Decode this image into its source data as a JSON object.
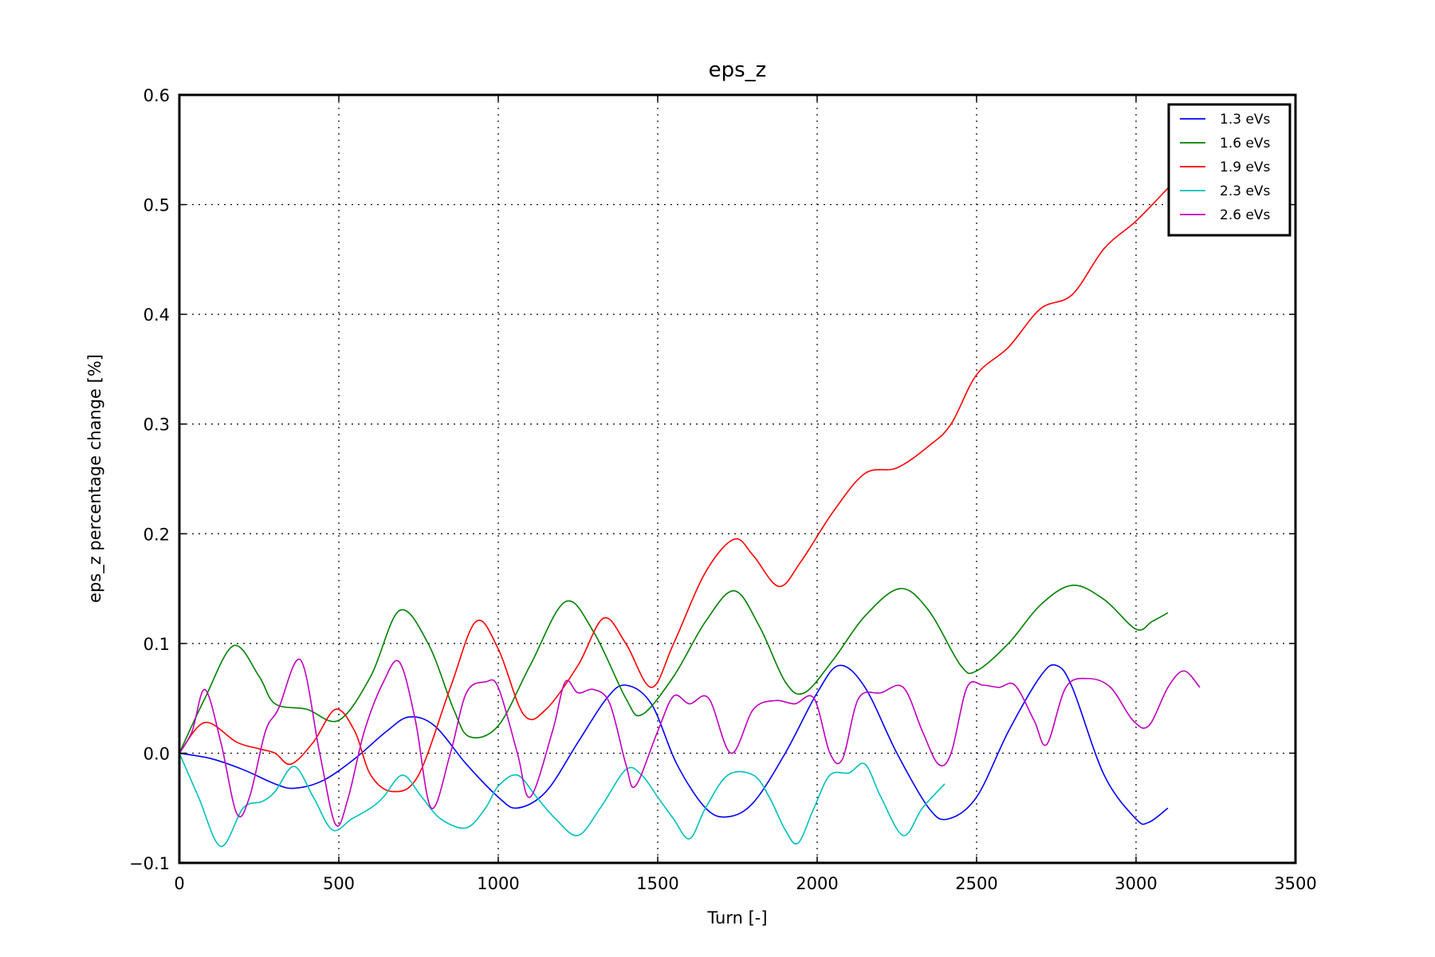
{
  "chart_data": {
    "type": "line",
    "title": "eps_z",
    "xlabel": "Turn [-]",
    "ylabel": "eps_z percentage change [%]",
    "xlim": [
      0,
      3500
    ],
    "ylim": [
      -0.1,
      0.6
    ],
    "xticks": [
      0,
      500,
      1000,
      1500,
      2000,
      2500,
      3000,
      3500
    ],
    "xtick_labels": [
      "0",
      "500",
      "1000",
      "1500",
      "2000",
      "2500",
      "3000",
      "3500"
    ],
    "yticks": [
      -0.1,
      0.0,
      0.1,
      0.2,
      0.3,
      0.4,
      0.5,
      0.6
    ],
    "ytick_labels": [
      "−0.1",
      "0.0",
      "0.1",
      "0.2",
      "0.3",
      "0.4",
      "0.5",
      "0.6"
    ],
    "grid": true,
    "legend_position": "top-right",
    "series": [
      {
        "name": "1.3 eVs",
        "color": "#0000ff",
        "x": [
          0,
          100,
          200,
          300,
          360,
          450,
          550,
          650,
          720,
          800,
          900,
          1000,
          1060,
          1150,
          1250,
          1340,
          1400,
          1480,
          1560,
          1650,
          1720,
          1800,
          1900,
          2000,
          2070,
          2150,
          2250,
          2350,
          2410,
          2500,
          2600,
          2700,
          2750,
          2800,
          2900,
          3000,
          3040,
          3100
        ],
        "y": [
          0.0,
          -0.005,
          -0.015,
          -0.028,
          -0.032,
          -0.025,
          -0.005,
          0.02,
          0.033,
          0.025,
          -0.01,
          -0.04,
          -0.05,
          -0.035,
          0.01,
          0.05,
          0.062,
          0.045,
          -0.01,
          -0.05,
          -0.058,
          -0.045,
          0.0,
          0.055,
          0.08,
          0.06,
          0.0,
          -0.05,
          -0.06,
          -0.04,
          0.02,
          0.07,
          0.08,
          0.06,
          -0.02,
          -0.06,
          -0.063,
          -0.05
        ]
      },
      {
        "name": "1.6 eVs",
        "color": "#008000",
        "x": [
          0,
          80,
          170,
          250,
          300,
          400,
          500,
          600,
          690,
          780,
          860,
          910,
          1000,
          1100,
          1210,
          1300,
          1400,
          1450,
          1550,
          1650,
          1740,
          1820,
          1900,
          1960,
          2050,
          2150,
          2260,
          2350,
          2450,
          2500,
          2600,
          2700,
          2800,
          2900,
          3000,
          3050,
          3100
        ],
        "y": [
          0.0,
          0.05,
          0.098,
          0.07,
          0.045,
          0.04,
          0.03,
          0.07,
          0.13,
          0.1,
          0.04,
          0.015,
          0.025,
          0.08,
          0.138,
          0.11,
          0.05,
          0.035,
          0.07,
          0.12,
          0.148,
          0.115,
          0.065,
          0.055,
          0.085,
          0.125,
          0.15,
          0.13,
          0.08,
          0.075,
          0.1,
          0.135,
          0.153,
          0.14,
          0.113,
          0.12,
          0.128
        ]
      },
      {
        "name": "1.9 eVs",
        "color": "#ff0000",
        "x": [
          0,
          80,
          180,
          250,
          300,
          350,
          420,
          490,
          550,
          600,
          670,
          750,
          850,
          930,
          1000,
          1080,
          1150,
          1250,
          1330,
          1400,
          1480,
          1550,
          1650,
          1740,
          1800,
          1880,
          1950,
          2050,
          2150,
          2250,
          2350,
          2420,
          2500,
          2600,
          2700,
          2800,
          2900,
          3000,
          3100
        ],
        "y": [
          0.0,
          0.028,
          0.01,
          0.004,
          0.0,
          -0.01,
          0.01,
          0.04,
          0.02,
          -0.02,
          -0.035,
          -0.02,
          0.06,
          0.12,
          0.095,
          0.035,
          0.04,
          0.08,
          0.123,
          0.1,
          0.06,
          0.1,
          0.165,
          0.195,
          0.18,
          0.152,
          0.175,
          0.22,
          0.255,
          0.26,
          0.28,
          0.3,
          0.345,
          0.37,
          0.405,
          0.418,
          0.46,
          0.485,
          0.515
        ]
      },
      {
        "name": "2.3 eVs",
        "color": "#00bfbf",
        "x": [
          0,
          60,
          130,
          200,
          260,
          300,
          360,
          420,
          480,
          540,
          600,
          640,
          700,
          760,
          820,
          900,
          960,
          1000,
          1060,
          1120,
          1180,
          1250,
          1320,
          1400,
          1450,
          1500,
          1550,
          1600,
          1650,
          1720,
          1800,
          1850,
          1900,
          1940,
          1990,
          2040,
          2100,
          2150,
          2200,
          2270,
          2330,
          2400
        ],
        "y": [
          0.0,
          -0.04,
          -0.085,
          -0.05,
          -0.044,
          -0.035,
          -0.012,
          -0.04,
          -0.07,
          -0.06,
          -0.05,
          -0.04,
          -0.02,
          -0.04,
          -0.06,
          -0.068,
          -0.05,
          -0.03,
          -0.02,
          -0.04,
          -0.06,
          -0.075,
          -0.05,
          -0.015,
          -0.02,
          -0.04,
          -0.06,
          -0.078,
          -0.05,
          -0.02,
          -0.02,
          -0.04,
          -0.07,
          -0.082,
          -0.05,
          -0.02,
          -0.018,
          -0.01,
          -0.04,
          -0.075,
          -0.05,
          -0.028
        ]
      },
      {
        "name": "2.6 eVs",
        "color": "#bf00bf",
        "x": [
          0,
          40,
          80,
          130,
          180,
          220,
          270,
          310,
          380,
          440,
          490,
          530,
          580,
          640,
          690,
          740,
          790,
          850,
          900,
          960,
          1000,
          1060,
          1100,
          1170,
          1210,
          1250,
          1300,
          1350,
          1400,
          1430,
          1500,
          1550,
          1600,
          1660,
          1730,
          1800,
          1870,
          1930,
          1990,
          2040,
          2080,
          2130,
          2200,
          2270,
          2330,
          2380,
          2420,
          2470,
          2520,
          2570,
          2620,
          2680,
          2720,
          2780,
          2850,
          2920,
          2990,
          3040,
          3100,
          3150,
          3200
        ],
        "y": [
          0.0,
          0.02,
          0.058,
          0.01,
          -0.055,
          -0.04,
          0.02,
          0.04,
          0.085,
          0.0,
          -0.065,
          -0.04,
          0.02,
          0.065,
          0.083,
          0.03,
          -0.05,
          0.0,
          0.055,
          0.065,
          0.06,
          0.0,
          -0.04,
          0.02,
          0.065,
          0.055,
          0.058,
          0.045,
          -0.01,
          -0.03,
          0.02,
          0.052,
          0.045,
          0.05,
          0.0,
          0.04,
          0.048,
          0.045,
          0.05,
          0.0,
          -0.005,
          0.05,
          0.055,
          0.06,
          0.02,
          -0.01,
          0.0,
          0.06,
          0.062,
          0.06,
          0.062,
          0.03,
          0.008,
          0.06,
          0.068,
          0.06,
          0.03,
          0.025,
          0.06,
          0.075,
          0.06
        ]
      }
    ]
  }
}
